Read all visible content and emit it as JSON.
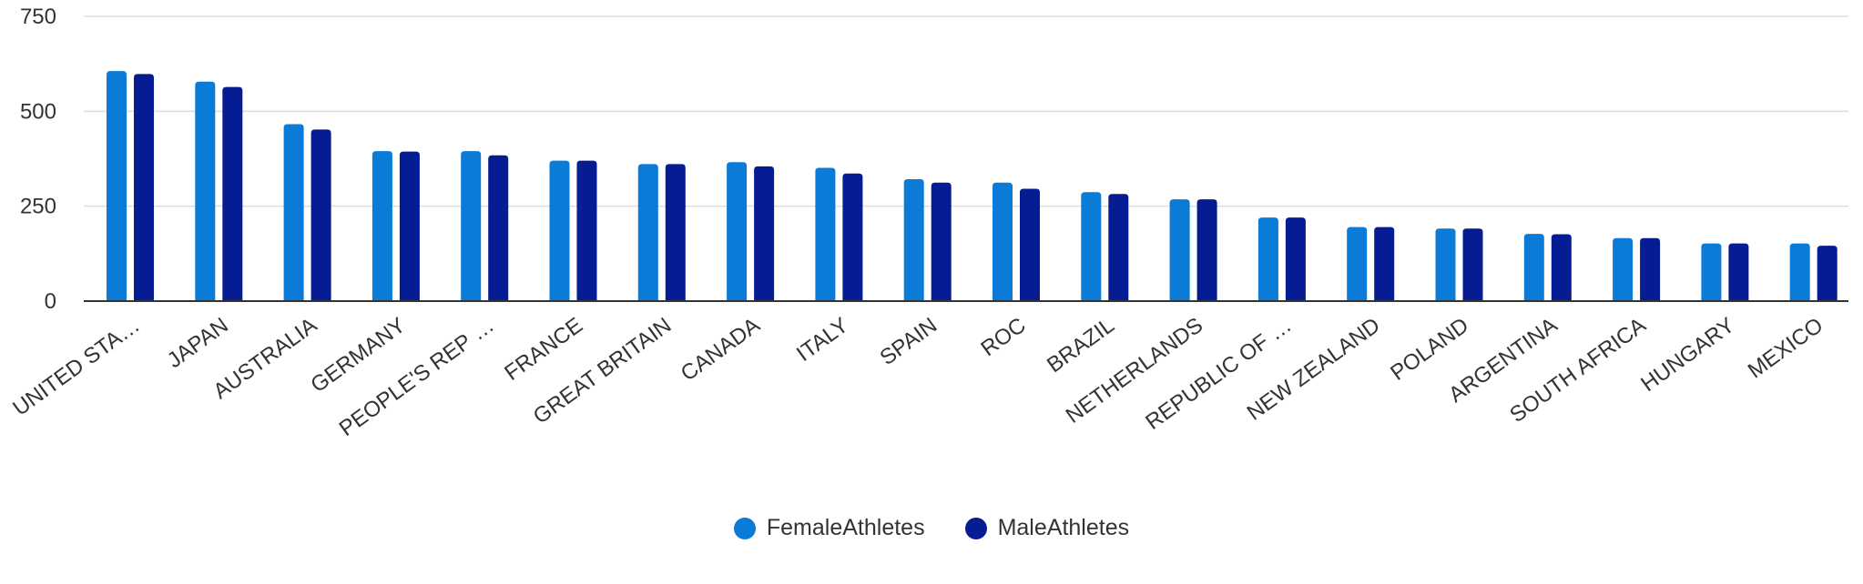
{
  "chart_data": {
    "type": "bar",
    "title": "",
    "xlabel": "",
    "ylabel": "",
    "ylim": [
      0,
      750
    ],
    "yticks": [
      0,
      250,
      500,
      750
    ],
    "grid": true,
    "legend_position": "bottom-center",
    "categories": [
      "UNITED STA…",
      "JAPAN",
      "AUSTRALIA",
      "GERMANY",
      "PEOPLE'S REP …",
      "FRANCE",
      "GREAT BRITAIN",
      "CANADA",
      "ITALY",
      "SPAIN",
      "ROC",
      "BRAZIL",
      "NETHERLANDS",
      "REPUBLIC OF …",
      "NEW ZEALAND",
      "POLAND",
      "ARGENTINA",
      "SOUTH AFRICA",
      "HUNGARY",
      "MEXICO"
    ],
    "series": [
      {
        "name": "FemaleAthletes",
        "color": "#0a7bd6",
        "values": [
          606,
          578,
          466,
          395,
          395,
          370,
          361,
          366,
          351,
          321,
          312,
          287,
          268,
          220,
          195,
          191,
          177,
          166,
          152,
          152
        ]
      },
      {
        "name": "MaleAthletes",
        "color": "#051c92",
        "values": [
          598,
          564,
          452,
          394,
          384,
          370,
          361,
          355,
          336,
          312,
          296,
          282,
          268,
          220,
          195,
          191,
          176,
          166,
          152,
          146
        ]
      }
    ]
  }
}
